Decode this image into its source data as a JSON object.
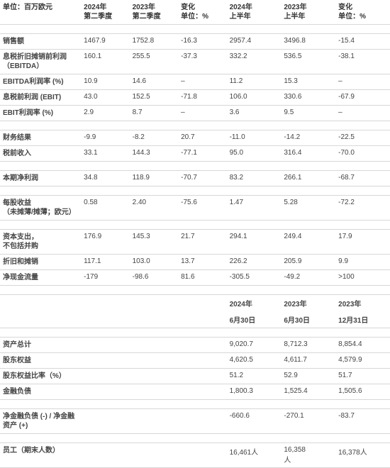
{
  "unit_label": "单位：百万欧元",
  "head": {
    "c1_l1": "2024年",
    "c1_l2": "第二季度",
    "c2_l1": "2023年",
    "c2_l2": "第二季度",
    "c3_l1": "变化",
    "c3_l2": "单位：%",
    "c4_l1": "2024年",
    "c4_l2": "上半年",
    "c5_l1": "2023年",
    "c5_l2": "上半年",
    "c6_l1": "变化",
    "c6_l2": "单位：%"
  },
  "rows1": [
    {
      "label": "销售额",
      "v": [
        "1467.9",
        "1752.8",
        "-16.3",
        "2957.4",
        "3496.8",
        "-15.4"
      ]
    },
    {
      "label": "息税折旧摊销前利润\n（EBITDA）",
      "v": [
        "160.1",
        "255.5",
        "-37.3",
        "332.2",
        "536.5",
        "-38.1"
      ]
    },
    {
      "label": "EBITDA利润率 (%)",
      "v": [
        "10.9",
        "14.6",
        "–",
        "11.2",
        "15.3",
        "–"
      ]
    },
    {
      "label": "息税前利润 (EBIT)",
      "v": [
        "43.0",
        "152.5",
        "-71.8",
        "106.0",
        "330.6",
        "-67.9"
      ]
    },
    {
      "label": "EBIT利润率 (%)",
      "v": [
        "2.9",
        "8.7",
        "–",
        "3.6",
        "9.5",
        "–"
      ]
    }
  ],
  "rows2": [
    {
      "label": "财务结果",
      "v": [
        "-9.9",
        "-8.2",
        "20.7",
        "-11.0",
        "-14.2",
        "-22.5"
      ]
    },
    {
      "label": "税前收入",
      "v": [
        "33.1",
        "144.3",
        "-77.1",
        "95.0",
        "316.4",
        "-70.0"
      ]
    }
  ],
  "rows3": [
    {
      "label": "本期净利润",
      "v": [
        "34.8",
        "118.9",
        "-70.7",
        "83.2",
        "266.1",
        "-68.7"
      ]
    }
  ],
  "rows4": [
    {
      "label": "每股收益\n（未摊薄/摊薄；欧元）",
      "v": [
        "0.58",
        "2.40",
        "-75.6",
        "1.47",
        "5.28",
        "-72.2"
      ]
    }
  ],
  "rows5": [
    {
      "label": "资本支出，\n不包括并购",
      "v": [
        "176.9",
        "145.3",
        "21.7",
        "294.1",
        "249.4",
        "17.9"
      ]
    },
    {
      "label": "折旧和摊销",
      "v": [
        "117.1",
        "103.0",
        "13.7",
        "226.2",
        "205.9",
        "9.9"
      ]
    },
    {
      "label": "净现金流量",
      "v": [
        "-179",
        "-98.6",
        "81.6",
        "-305.5",
        "-49.2",
        ">100"
      ]
    }
  ],
  "head2": {
    "c4_l1": "2024年",
    "c4_l2": "6月30日",
    "c5_l1": "2023年",
    "c5_l2": "6月30日",
    "c6_l1": "2023年",
    "c6_l2": "12月31日"
  },
  "rows6": [
    {
      "label": "资产总计",
      "v": [
        "",
        "",
        "",
        "9,020.7",
        "8,712.3",
        "8,854.4"
      ]
    },
    {
      "label": "股东权益",
      "v": [
        "",
        "",
        "",
        "4,620.5",
        "4,611.7",
        "4,579.9"
      ]
    },
    {
      "label": "股东权益比率（%）",
      "v": [
        "",
        "",
        "",
        "51.2",
        "52.9",
        "51.7"
      ]
    },
    {
      "label": "金融负债",
      "v": [
        "",
        "",
        "",
        "1,800.3",
        "1,525.4",
        "1,505.6"
      ]
    }
  ],
  "rows7": [
    {
      "label": "净金融负债 (-) / 净金融资产 (+)",
      "v": [
        "",
        "",
        "",
        "-660.6",
        "-270.1",
        "-83.7"
      ]
    }
  ],
  "rows8": [
    {
      "label": "员工（期末人数）",
      "v": [
        "",
        "",
        "",
        "16,461人",
        "16,358\n人",
        "16,378人"
      ]
    }
  ]
}
